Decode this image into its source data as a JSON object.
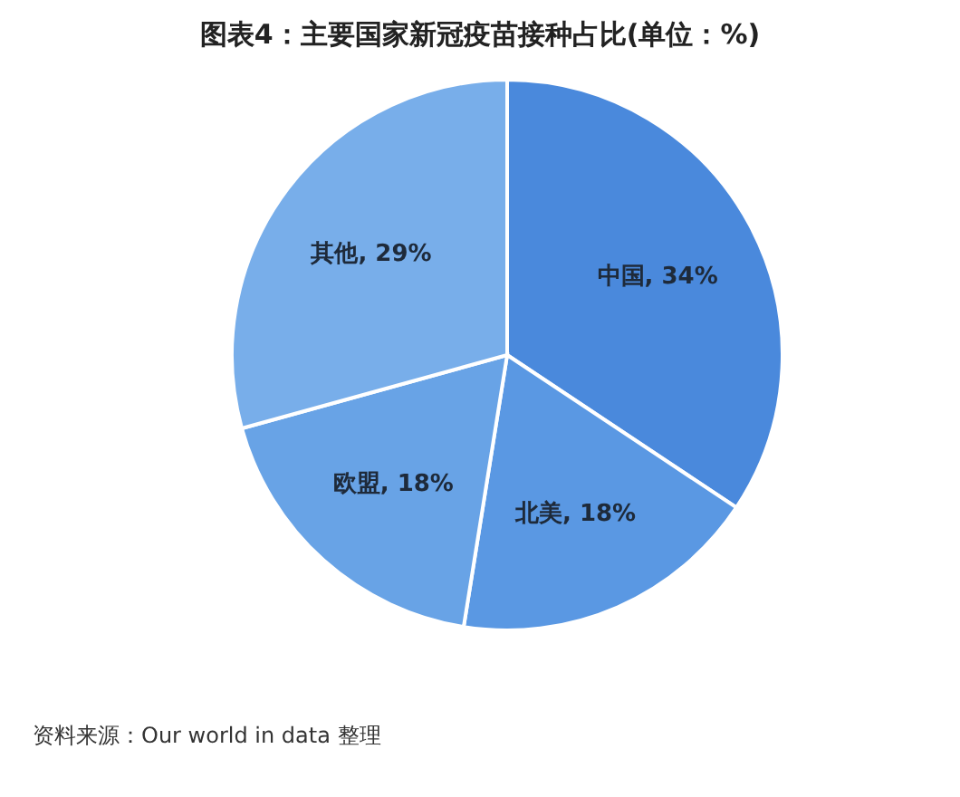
{
  "chart_data": {
    "type": "pie",
    "title": "图表4：主要国家新冠疫苗接种占比(单位：%)",
    "categories": [
      "中国",
      "北美",
      "欧盟",
      "其他"
    ],
    "values": [
      34,
      18,
      18,
      29
    ],
    "value_labels": [
      "34%",
      "18%",
      "18%",
      "29%"
    ],
    "colors": [
      "#4a89dc",
      "#5a98e3",
      "#68a3e6",
      "#78aeea"
    ],
    "legend": false,
    "annotations": [
      "资料来源：Our world in data 整理"
    ]
  }
}
